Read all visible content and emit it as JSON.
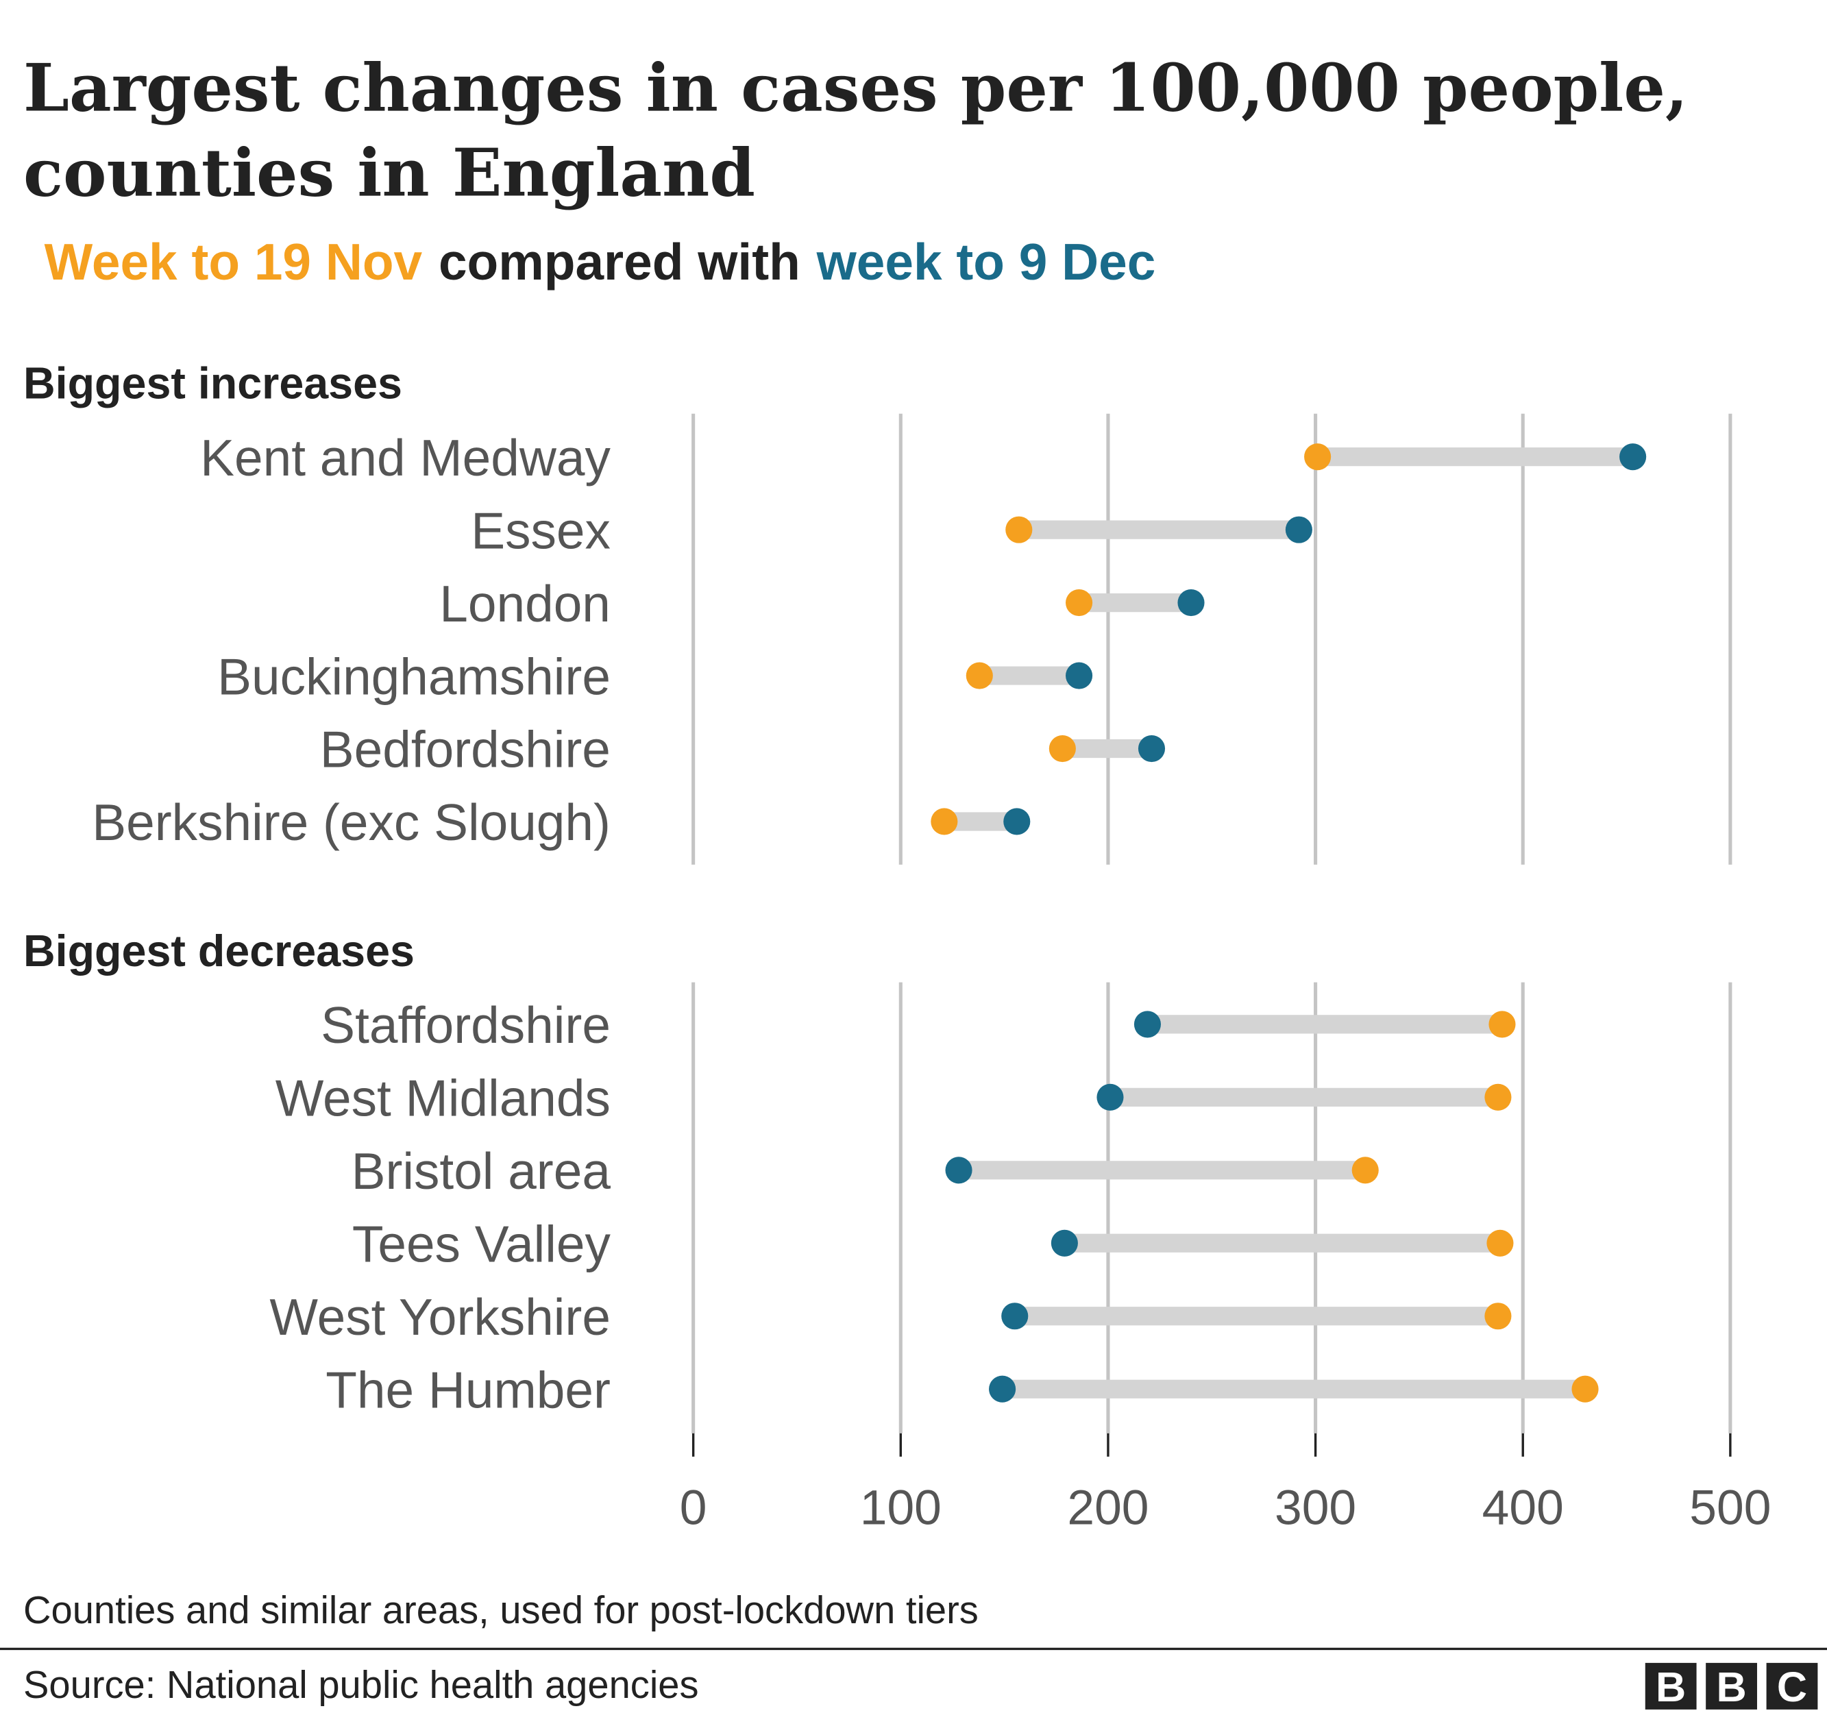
{
  "title": [
    "Largest changes in cases per 100,000 people,",
    "counties in England"
  ],
  "subtitle_joiner": "compared with",
  "note": "Counties and similar areas, used for post-lockdown tiers",
  "source": "Source: National public health agencies",
  "logo": [
    "B",
    "B",
    "C"
  ],
  "chart_data": [
    {
      "type": "dumbbell",
      "title": "Biggest increases",
      "categories": [
        "Kent and Medway",
        "Essex",
        "London",
        "Buckinghamshire",
        "Bedfordshire",
        "Berkshire (exc Slough)"
      ],
      "series": [
        {
          "name": "Week to 19 Nov",
          "color": "#f5a01f",
          "values": [
            301,
            157,
            186,
            138,
            178,
            121
          ]
        },
        {
          "name": "week to 9 Dec",
          "color": "#1a6b8a",
          "values": [
            453,
            292,
            240,
            186,
            221,
            156
          ]
        }
      ],
      "xlim": [
        0,
        500
      ],
      "xticks": [
        0,
        100,
        200,
        300,
        400,
        500
      ],
      "grid": true
    },
    {
      "type": "dumbbell",
      "title": "Biggest decreases",
      "categories": [
        "Staffordshire",
        "West Midlands",
        "Bristol area",
        "Tees Valley",
        "West Yorkshire",
        "The Humber"
      ],
      "series": [
        {
          "color": "#f5a01f",
          "values": [
            390,
            388,
            324,
            389,
            388,
            430
          ]
        },
        {
          "color": "#1a6b8a",
          "values": [
            219,
            201,
            128,
            179,
            155,
            149
          ]
        }
      ],
      "xlim": [
        0,
        500
      ],
      "xticks": [
        0,
        100,
        200,
        300,
        400,
        500
      ],
      "grid": true
    }
  ]
}
